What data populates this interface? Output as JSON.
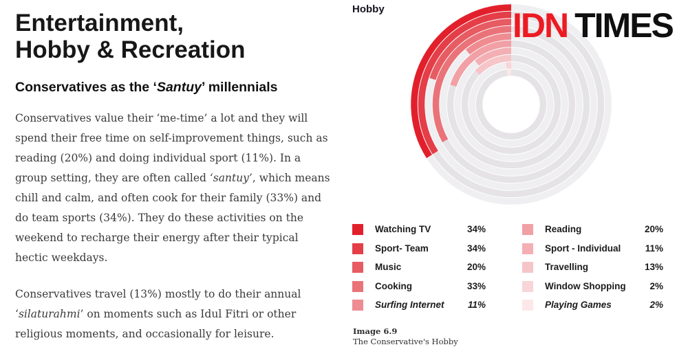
{
  "article": {
    "title_lines": [
      "Entertainment,",
      "Hobby & Recreation"
    ],
    "subtitle_segments": [
      {
        "text": "Conservatives as the ‘",
        "italic": false
      },
      {
        "text": "Santuy",
        "italic": true
      },
      {
        "text": "’ millennials",
        "italic": false
      }
    ],
    "paragraphs": [
      {
        "segments": [
          {
            "text": "Conservatives value their ‘me-time’ a lot and they will spend their free time on self-improvement things, such as reading (20%) and doing individual sport (11%). In a group setting, they are often called ",
            "italic": false
          },
          {
            "text": "‘santuy’",
            "italic": true
          },
          {
            "text": ", which means chill and calm, and often cook for their family (33%) and do team sports (34%). They do these activities on the weekend to recharge their energy after their typical hectic weekdays.",
            "italic": false
          }
        ]
      },
      {
        "segments": [
          {
            "text": "Conservatives travel (13%) mostly to do their annual ‘",
            "italic": false
          },
          {
            "text": "silaturahmi",
            "italic": true
          },
          {
            "text": "’ on moments such as Idul Fitri or other religious moments, and occasionally for leisure.",
            "italic": false
          }
        ]
      }
    ]
  },
  "chart_panel": {
    "label": "Hobby",
    "caption_title": "Image 6.9",
    "caption_subtitle": "The Conservative's Hobby"
  },
  "logo": {
    "part1": "IDN",
    "part2": "TIMES",
    "part1_color": "#EC1B23",
    "part2_color": "#0f0f0f"
  },
  "chart_data": {
    "type": "bar",
    "variant": "radial-concentric-rings",
    "title": "Hobby",
    "categories": [
      "Watching TV",
      "Sport- Team",
      "Music",
      "Cooking",
      "Surfing Internet",
      "Reading",
      "Sport - Individual",
      "Travelling",
      "Window Shopping",
      "Playing Games"
    ],
    "values": [
      34,
      34,
      20,
      33,
      11,
      20,
      11,
      13,
      2,
      2
    ],
    "unit": "%",
    "value_scale": "percent-of-full-circle",
    "ring_order": "outermost-to-innermost",
    "arc_start": "12-oclock",
    "arc_direction": "counterclockwise",
    "ring_colors": [
      "#E2202C",
      "#E43E48",
      "#E75B62",
      "#EA737A",
      "#EE8C92",
      "#F1A0A5",
      "#F3AFB4",
      "#F6C5C8",
      "#F9D5D8",
      "#FCE8E9"
    ],
    "track_colors": [
      "#EFEEF0",
      "#E5E3E6"
    ],
    "geometry": {
      "center": [
        146,
        146
      ],
      "outer_ring_radius": 141,
      "ring_pitch": 10.5,
      "ring_thickness": 9.5,
      "hole_radius": 41
    },
    "legend_position": "bottom-two-columns",
    "grid": false
  },
  "legend": {
    "columns": [
      {
        "items": [
          {
            "label": "Watching TV",
            "value": "34%",
            "color": "#E2202C",
            "italic": false
          },
          {
            "label": "Sport- Team",
            "value": "34%",
            "color": "#E43E48",
            "italic": false
          },
          {
            "label": "Music",
            "value": "20%",
            "color": "#E75B62",
            "italic": false
          },
          {
            "label": "Cooking",
            "value": "33%",
            "color": "#EA737A",
            "italic": false
          },
          {
            "label": "Surfing Internet",
            "value": "11%",
            "color": "#EE8C92",
            "italic": true
          }
        ]
      },
      {
        "items": [
          {
            "label": "Reading",
            "value": "20%",
            "color": "#F1A0A5",
            "italic": false
          },
          {
            "label": "Sport - Individual",
            "value": "11%",
            "color": "#F3AFB4",
            "italic": false
          },
          {
            "label": "Travelling",
            "value": "13%",
            "color": "#F6C5C8",
            "italic": false
          },
          {
            "label": "Window Shopping",
            "value": "2%",
            "color": "#F9D5D8",
            "italic": false
          },
          {
            "label": "Playing Games",
            "value": "2%",
            "color": "#FCE8E9",
            "italic": true
          }
        ]
      }
    ]
  }
}
